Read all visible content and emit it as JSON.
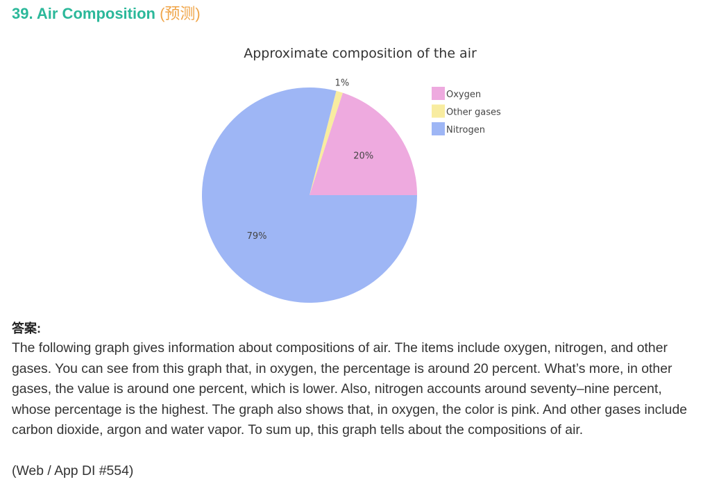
{
  "header": {
    "title": "39. Air Composition",
    "tag": "(预测)"
  },
  "colors": {
    "heading": "#2bb89a",
    "tag": "#f0a64a",
    "oxygen": "#eeaadf",
    "other_gases": "#f8eca0",
    "nitrogen": "#9eb6f5"
  },
  "chart_data": {
    "type": "pie",
    "title": "Approximate composition of the air",
    "slices": [
      {
        "name": "Oxygen",
        "value": 20,
        "label": "20%",
        "color": "#eeaadf"
      },
      {
        "name": "Other gases",
        "value": 1,
        "label": "1%",
        "color": "#f8eca0"
      },
      {
        "name": "Nitrogen",
        "value": 79,
        "label": "79%",
        "color": "#9eb6f5"
      }
    ],
    "legend_position": "right"
  },
  "answer": {
    "label": "答案:",
    "text": "The following graph gives information about compositions of air. The items include oxygen, nitrogen, and other gases. You can see from this graph that, in oxygen, the percentage is around 20 percent. What’s more, in other gases, the value is around one percent, which is lower. Also, nitrogen accounts around seventy–nine percent, whose percentage is the highest. The graph also shows that, in oxygen, the color is pink. And other gases include carbon dioxide, argon and water vapor. To sum up, this graph tells about the compositions of air.",
    "source": "(Web / App DI #554)"
  }
}
